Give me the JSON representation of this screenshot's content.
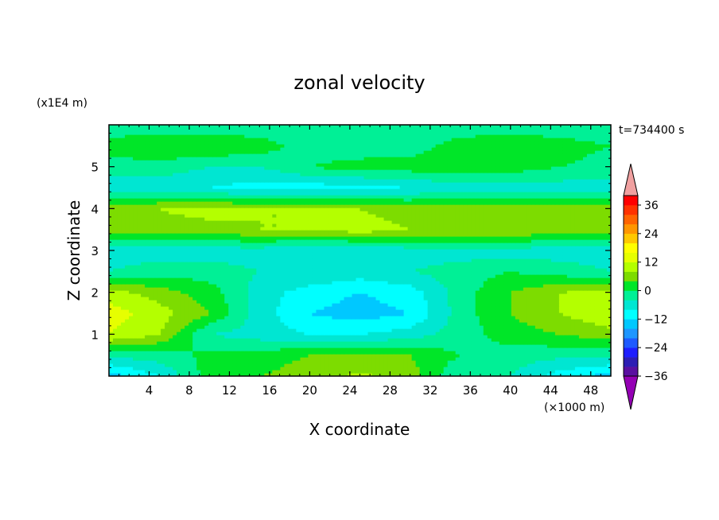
{
  "chart_data": {
    "type": "heatmap",
    "title": "zonal velocity",
    "xlabel": "X coordinate",
    "ylabel": "Z coordinate",
    "x_unit": "(×1000 m)",
    "y_unit": "(x1E4 m)",
    "time_label": "t=734400 s",
    "xlim": [
      0,
      50
    ],
    "ylim": [
      0,
      6
    ],
    "xticks": [
      "4",
      "8",
      "12",
      "16",
      "20",
      "24",
      "28",
      "32",
      "36",
      "40",
      "44",
      "48"
    ],
    "yticks": [
      "1",
      "2",
      "3",
      "4",
      "5"
    ],
    "colorbar": {
      "ticks": [
        "36",
        "24",
        "12",
        "0",
        "−12",
        "−24",
        "−36"
      ],
      "levels": [
        -40,
        -36,
        -32,
        -28,
        -24,
        -20,
        -16,
        -12,
        -8,
        -4,
        0,
        4,
        8,
        12,
        16,
        20,
        24,
        28,
        32,
        36,
        40
      ],
      "colors": [
        "#9400b4",
        "#5a0fa0",
        "#2d1eb4",
        "#1e1eff",
        "#1e5aff",
        "#1e96ff",
        "#00c8ff",
        "#00ffff",
        "#00e6d2",
        "#00f096",
        "#00e628",
        "#7ddc00",
        "#b4ff00",
        "#e6ff00",
        "#ffff00",
        "#ffc800",
        "#ff9600",
        "#ff6400",
        "#ff3200",
        "#ff0000",
        "#f0a0a0"
      ]
    },
    "field": {
      "x": [
        0,
        5,
        10,
        15,
        20,
        25,
        30,
        35,
        40,
        45,
        50
      ],
      "z": [
        0,
        0.5,
        1,
        1.5,
        2,
        2.5,
        3,
        3.5,
        4,
        4.5,
        5,
        5.5,
        6
      ],
      "u": [
        [
          -14,
          -8,
          2,
          4,
          6,
          9,
          6,
          -4,
          -4,
          -10,
          -14
        ],
        [
          -3,
          -2,
          1,
          2,
          4,
          5,
          4,
          0,
          -2,
          -3,
          -3
        ],
        [
          12,
          8,
          -4,
          -6,
          -8,
          -8,
          -6,
          -2,
          2,
          4,
          6
        ],
        [
          14,
          10,
          4,
          -6,
          -12,
          -14,
          -12,
          -2,
          4,
          8,
          12
        ],
        [
          10,
          6,
          2,
          -6,
          -10,
          -12,
          -10,
          -2,
          4,
          8,
          10
        ],
        [
          -4,
          -2,
          -2,
          -4,
          -4,
          -6,
          -4,
          -2,
          0,
          -2,
          -4
        ],
        [
          -6,
          -6,
          -6,
          -6,
          -8,
          -8,
          -6,
          -6,
          -6,
          -6,
          -6
        ],
        [
          6,
          6,
          6,
          8,
          8,
          10,
          8,
          8,
          8,
          6,
          6
        ],
        [
          6,
          8,
          10,
          8,
          8,
          8,
          6,
          6,
          6,
          6,
          6
        ],
        [
          -6,
          -6,
          -8,
          -10,
          -10,
          -10,
          -8,
          -6,
          -6,
          -6,
          -6
        ],
        [
          -2,
          -2,
          -4,
          -4,
          0,
          2,
          2,
          2,
          2,
          0,
          -2
        ],
        [
          2,
          4,
          4,
          2,
          -2,
          -3,
          -2,
          2,
          4,
          2,
          0
        ],
        [
          -3,
          -3,
          -3,
          -3,
          -3,
          -3,
          -3,
          -3,
          -3,
          -3,
          -3
        ]
      ]
    }
  }
}
